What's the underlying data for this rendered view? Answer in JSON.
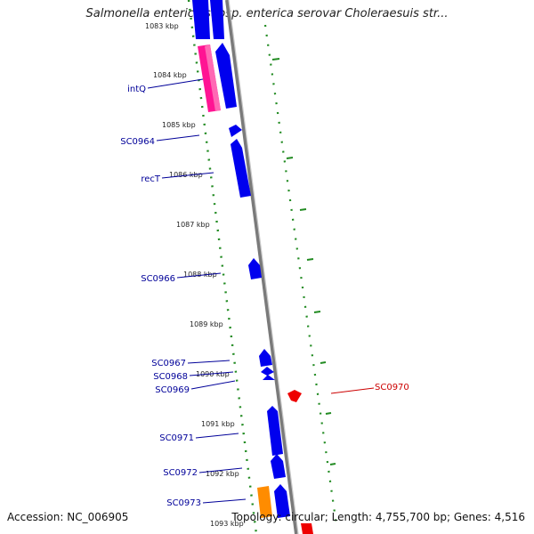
{
  "title": "Salmonella enterica subsp. enterica serovar Choleraesuis str...",
  "footer": {
    "accession": "Accession: NC_006905",
    "topology": "Topology: circular; Length: 4,755,700 bp; Genes: 4,516"
  },
  "colors": {
    "forward": "#0000ee",
    "reverse": "#ee0000",
    "trna": "#ff1493",
    "rrna": "#ff8c00",
    "backbone": "#808080",
    "ticks": "#228b22",
    "label_forward": "#000099",
    "label_reverse": "#cc0000"
  },
  "kbp_labels": [
    "1083 kbp",
    "1084 kbp",
    "1085 kbp",
    "1086 kbp",
    "1087 kbp",
    "1088 kbp",
    "1089 kbp",
    "1090 kbp",
    "1091 kbp",
    "1092 kbp",
    "1093 kbp"
  ],
  "gene_labels": [
    {
      "name": "intQ",
      "strand": "forward"
    },
    {
      "name": "SC0964",
      "strand": "forward"
    },
    {
      "name": "recT",
      "strand": "forward"
    },
    {
      "name": "SC0966",
      "strand": "forward"
    },
    {
      "name": "SC0967",
      "strand": "forward"
    },
    {
      "name": "SC0968",
      "strand": "forward"
    },
    {
      "name": "SC0969",
      "strand": "forward"
    },
    {
      "name": "SC0970",
      "strand": "reverse"
    },
    {
      "name": "SC0971",
      "strand": "forward"
    },
    {
      "name": "SC0972",
      "strand": "forward"
    },
    {
      "name": "SC0973",
      "strand": "forward"
    }
  ]
}
